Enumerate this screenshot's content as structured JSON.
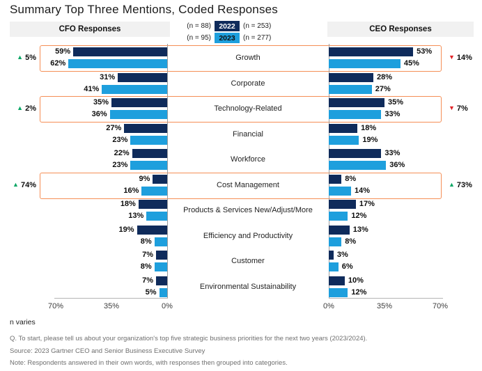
{
  "header": {
    "left_label": "CFO Responses",
    "right_label": "CEO Responses"
  },
  "legend": {
    "rows": [
      {
        "left_n": "(n = 88)",
        "year": "2022",
        "right_n": "(n = 253)"
      },
      {
        "left_n": "(n = 95)",
        "year": "2023",
        "right_n": "(n = 277)"
      }
    ]
  },
  "colors": {
    "navy_2022": "#0f2b5b",
    "light_blue_2023": "#1e9fdd",
    "highlight_orange": "#f58e55",
    "up_green": "#07a664",
    "down_red": "#e02327",
    "header_bg": "#f1f1f1",
    "axis_line": "#9b9b9b",
    "baseline": "#b4b4b4"
  },
  "chart_data": {
    "type": "bar",
    "subtype": "mirrored-horizontal-butterfly",
    "title": "Summary Top Three Mentions, Coded Responses",
    "unit": "%",
    "axis_max": 70,
    "left_axis_ticks": [
      "70%",
      "35%",
      "0%"
    ],
    "right_axis_ticks": [
      "0%",
      "35%",
      "70%"
    ],
    "categories": [
      "Growth",
      "Corporate",
      "Technology-Related",
      "Financial",
      "Workforce",
      "Cost Management",
      "Products & Services New/Adjust/More",
      "Efficiency and Productivity",
      "Customer",
      "Environmental Sustainability"
    ],
    "series": [
      {
        "name": "CFO 2022",
        "values": [
          59,
          31,
          35,
          27,
          22,
          9,
          18,
          19,
          7,
          7
        ]
      },
      {
        "name": "CFO 2023",
        "values": [
          62,
          41,
          36,
          23,
          23,
          16,
          13,
          8,
          8,
          5
        ]
      },
      {
        "name": "CEO 2022",
        "values": [
          53,
          28,
          35,
          18,
          33,
          8,
          17,
          13,
          3,
          10
        ]
      },
      {
        "name": "CEO 2023",
        "values": [
          45,
          27,
          33,
          19,
          36,
          14,
          12,
          8,
          6,
          12
        ]
      }
    ],
    "highlights": [
      {
        "row": 0,
        "category": "Growth",
        "cfo": {
          "dir": "up",
          "label": "5%"
        },
        "ceo": {
          "dir": "down",
          "label": "14%"
        }
      },
      {
        "row": 2,
        "category": "Technology-Related",
        "cfo": {
          "dir": "up",
          "label": "2%"
        },
        "ceo": {
          "dir": "down",
          "label": "7%"
        }
      },
      {
        "row": 5,
        "category": "Cost Management",
        "cfo": {
          "dir": "up",
          "label": "74%"
        },
        "ceo": {
          "dir": "up",
          "label": "73%"
        }
      }
    ]
  },
  "footnotes": {
    "n_varies": "n varies",
    "question": "Q. To start, please tell us about your organization's top five strategic business priorities for the next two years (2023/2024).",
    "source": "Source: 2023 Gartner CEO and Senior Business Executive Survey",
    "note": "Note: Respondents answered in their own words, with responses then grouped into categories."
  }
}
